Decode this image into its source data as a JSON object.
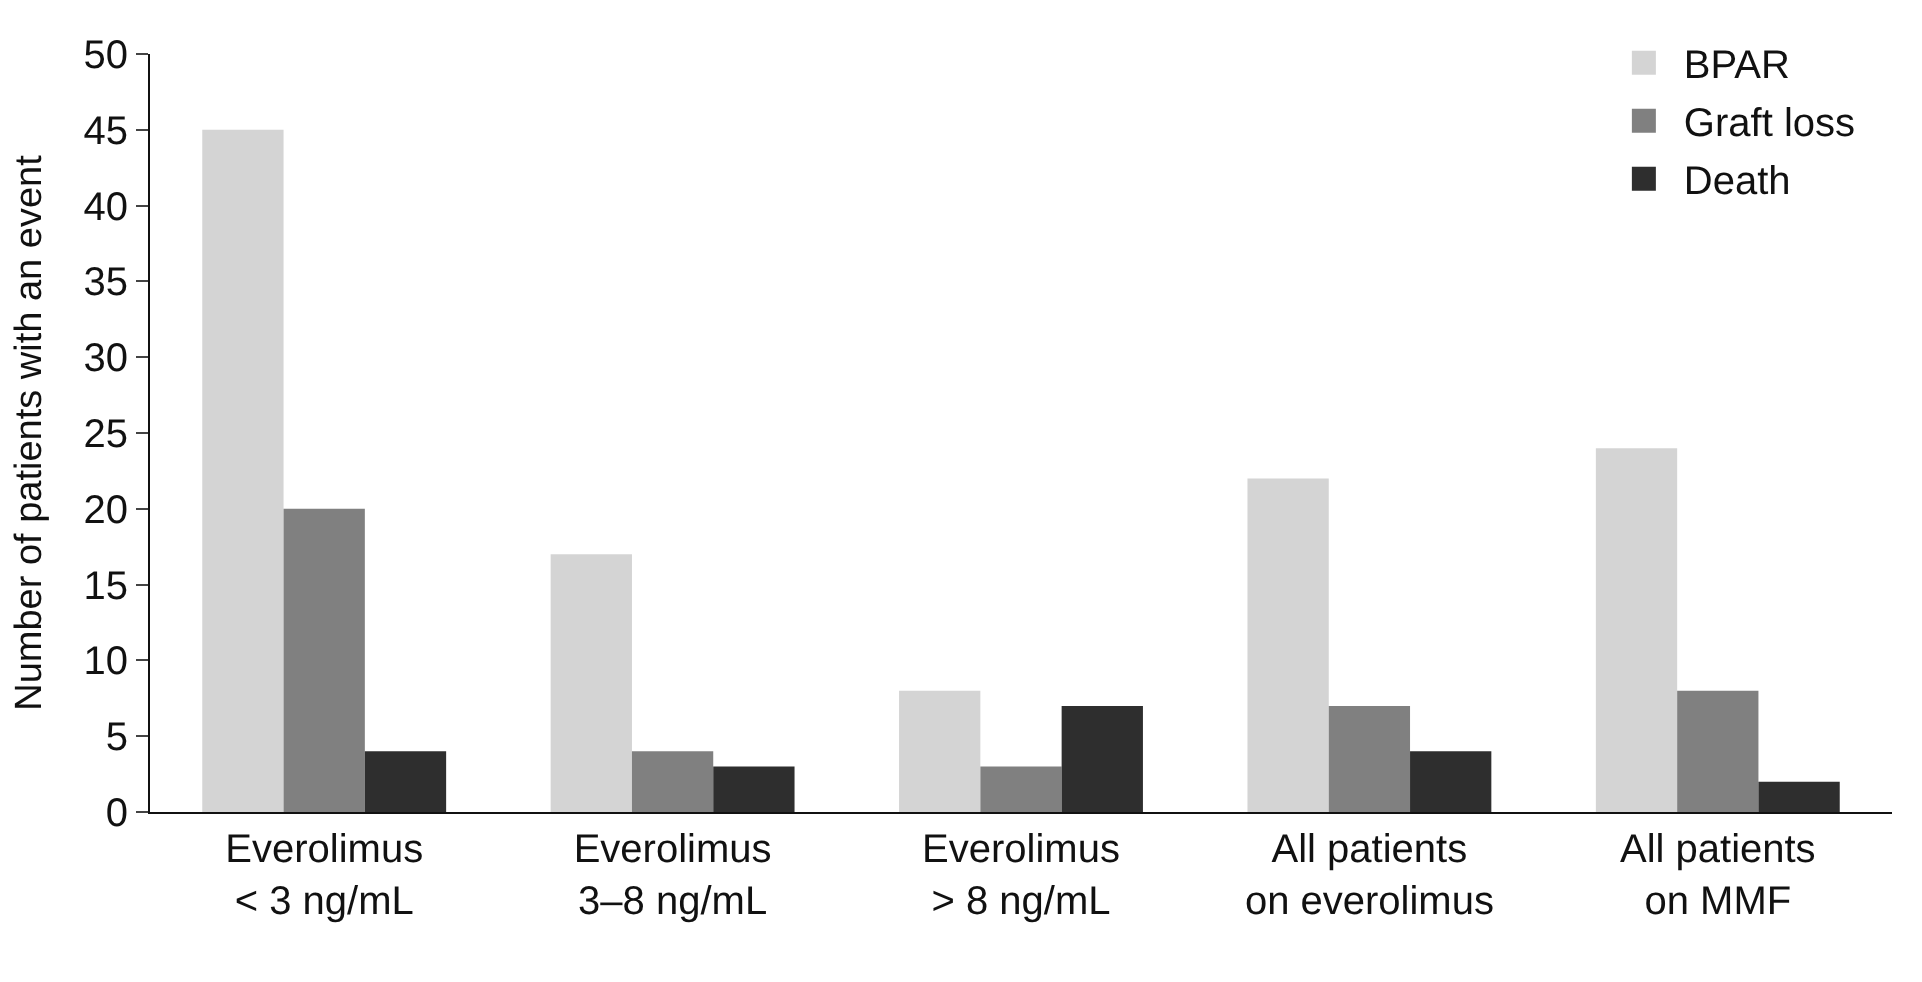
{
  "chart_data": {
    "type": "bar",
    "ylabel": "Number of patients with an event",
    "categories": [
      "Everolimus\n< 3 ng/mL",
      "Everolimus\n3–8 ng/mL",
      "Everolimus\n> 8 ng/mL",
      "All patients\non everolimus",
      "All patients\non MMF"
    ],
    "series": [
      {
        "name": "BPAR",
        "color": "#d4d4d4",
        "values": [
          45,
          17,
          8,
          22,
          24
        ]
      },
      {
        "name": "Graft loss",
        "color": "#808080",
        "values": [
          20,
          4,
          3,
          7,
          8
        ]
      },
      {
        "name": "Death",
        "color": "#2e2e2e",
        "values": [
          4,
          3,
          7,
          4,
          2
        ]
      }
    ],
    "ylim": [
      0,
      50
    ],
    "yticks": [
      0,
      5,
      10,
      15,
      20,
      25,
      30,
      35,
      40,
      45,
      50
    ],
    "legend": "top right"
  }
}
